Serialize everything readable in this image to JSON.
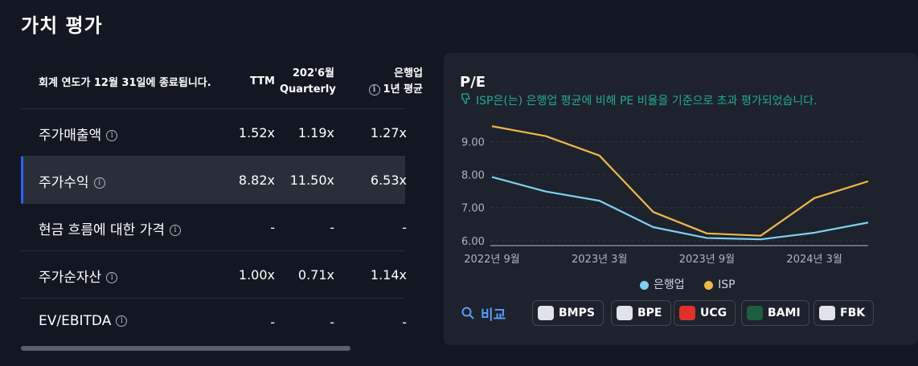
{
  "page_title": "가치 평가",
  "table": {
    "header": {
      "fiscal_note": "회계 연도가 12월 31일에 종료됩니다.",
      "col_ttm": "TTM",
      "col_quarterly_line1": "202'6월",
      "col_quarterly_line2": "Quarterly",
      "col_avg_line1": "은행업",
      "col_avg_line2": "1년 평균"
    },
    "rows": [
      {
        "label": "주가매출액",
        "ttm": "1.52x",
        "quarterly": "1.19x",
        "avg": "1.27x"
      },
      {
        "label": "주가수익",
        "ttm": "8.82x",
        "quarterly": "11.50x",
        "avg": "6.53x"
      },
      {
        "label": "현금 흐름에 대한 가격",
        "ttm": "-",
        "quarterly": "-",
        "avg": "-"
      },
      {
        "label": "주가순자산",
        "ttm": "1.00x",
        "quarterly": "0.71x",
        "avg": "1.14x"
      },
      {
        "label": "EV/EBITDA",
        "ttm": "-",
        "quarterly": "-",
        "avg": "-"
      }
    ]
  },
  "chart_panel": {
    "title": "P/E",
    "subtitle": "ISP은(는) 은행업 평균에 비해 PE 비율을 기준으로 초과 평가되었습니다.",
    "legend": [
      {
        "name": "은행업",
        "color": "#7fd0f0"
      },
      {
        "name": "ISP",
        "color": "#f0b849"
      }
    ],
    "compare_label": "비교",
    "peers": [
      "BMPS",
      "BPE",
      "UCG",
      "BAMI",
      "FBK"
    ]
  },
  "chart_data": {
    "type": "line",
    "x": [
      "2022-09",
      "2022-12",
      "2023-03",
      "2023-06",
      "2023-09",
      "2023-12",
      "2024-03",
      "2024-06"
    ],
    "x_tick_labels": [
      "2022년 9월",
      "2023년 3월",
      "2023년 9월",
      "2024년 3월"
    ],
    "y_tick_labels": [
      "6.00",
      "7.00",
      "8.00",
      "9.00"
    ],
    "ylim": [
      5.85,
      9.5
    ],
    "grid": true,
    "legend_position": "bottom",
    "series": [
      {
        "name": "은행업",
        "color": "#7fd0f0",
        "values": [
          7.93,
          7.49,
          7.21,
          6.41,
          6.08,
          6.04,
          6.24,
          6.55
        ]
      },
      {
        "name": "ISP",
        "color": "#f0b849",
        "values": [
          9.47,
          9.17,
          8.58,
          6.87,
          6.22,
          6.15,
          7.29,
          7.8
        ]
      }
    ]
  }
}
